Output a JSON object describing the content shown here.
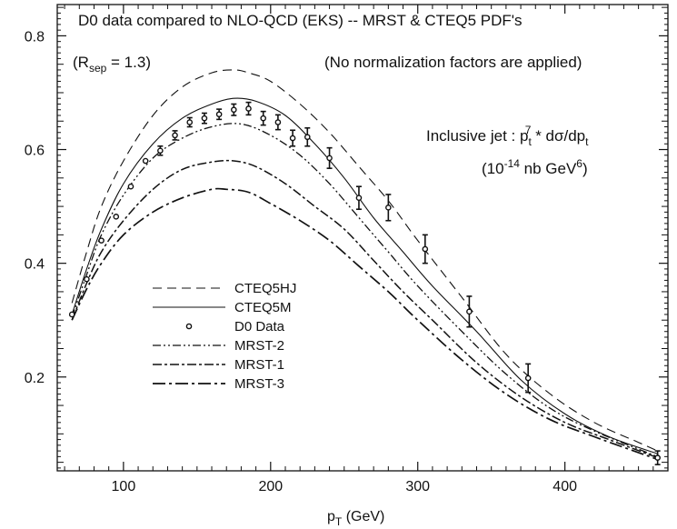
{
  "chart_data": {
    "type": "line",
    "title": "D0 data compared to NLO-QCD (EKS) -- MRST & CTEQ5 PDF's",
    "annotations": {
      "rsep_prefix": "(R",
      "rsep_sub": "sep",
      "rsep_suffix": " = 1.3)",
      "normalization": "(No normalization factors are applied)",
      "quantity_prefix": "Inclusive jet : p",
      "quantity_sub": "t",
      "quantity_sup": "7",
      "quantity_suffix": " * dσ/dp",
      "quantity_sub2": "t",
      "units_prefix": "(10",
      "units_exp": "-14",
      "units_mid": " nb GeV",
      "units_exp2": "6",
      "units_suffix": ")"
    },
    "xlabel_main": "p",
    "xlabel_sub": "T",
    "xlabel_unit": "  (GeV)",
    "ylabel": "",
    "xlim": [
      55,
      470
    ],
    "ylim": [
      0.035,
      0.855
    ],
    "x_ticks": [
      100,
      200,
      300,
      400
    ],
    "y_ticks": [
      0.2,
      0.4,
      0.6,
      0.8
    ],
    "x_tick_labels": [
      "100",
      "200",
      "300",
      "400"
    ],
    "y_tick_labels": [
      "0.2",
      "0.4",
      "0.6",
      "0.8"
    ],
    "legend_position": "lower-left",
    "series": [
      {
        "name": "CTEQ5HJ",
        "style": "dashed",
        "x": [
          65,
          75,
          85,
          100,
          120,
          140,
          160,
          175,
          185,
          200,
          220,
          240,
          260,
          280,
          300,
          330,
          360,
          390,
          420,
          450,
          463
        ],
        "y": [
          0.33,
          0.42,
          0.5,
          0.58,
          0.66,
          0.71,
          0.735,
          0.74,
          0.735,
          0.72,
          0.68,
          0.63,
          0.57,
          0.51,
          0.44,
          0.34,
          0.24,
          0.17,
          0.12,
          0.085,
          0.07
        ]
      },
      {
        "name": "CTEQ5M",
        "style": "solid",
        "x": [
          65,
          75,
          85,
          100,
          120,
          140,
          160,
          175,
          190,
          210,
          230,
          250,
          270,
          290,
          310,
          340,
          370,
          400,
          430,
          463
        ],
        "y": [
          0.31,
          0.39,
          0.46,
          0.54,
          0.61,
          0.655,
          0.68,
          0.69,
          0.685,
          0.66,
          0.61,
          0.55,
          0.48,
          0.42,
          0.36,
          0.28,
          0.195,
          0.135,
          0.095,
          0.065
        ]
      },
      {
        "name": "MRST-2",
        "style": "dashdotdot",
        "x": [
          65,
          75,
          85,
          100,
          120,
          140,
          160,
          180,
          200,
          220,
          240,
          260,
          280,
          300,
          330,
          360,
          390,
          420,
          463
        ],
        "y": [
          0.305,
          0.38,
          0.45,
          0.52,
          0.585,
          0.62,
          0.64,
          0.645,
          0.625,
          0.59,
          0.54,
          0.48,
          0.42,
          0.36,
          0.28,
          0.205,
          0.145,
          0.105,
          0.06
        ]
      },
      {
        "name": "MRST-1",
        "style": "dashdot",
        "x": [
          65,
          75,
          85,
          100,
          120,
          140,
          160,
          175,
          190,
          210,
          230,
          250,
          270,
          290,
          310,
          340,
          370,
          400,
          430,
          463
        ],
        "y": [
          0.3,
          0.365,
          0.42,
          0.475,
          0.53,
          0.565,
          0.578,
          0.58,
          0.57,
          0.54,
          0.5,
          0.46,
          0.405,
          0.35,
          0.3,
          0.225,
          0.165,
          0.12,
          0.09,
          0.058
        ]
      },
      {
        "name": "MRST-3",
        "style": "longdashdot",
        "x": [
          65,
          75,
          85,
          100,
          120,
          140,
          160,
          170,
          185,
          200,
          220,
          240,
          260,
          280,
          300,
          330,
          360,
          390,
          420,
          463
        ],
        "y": [
          0.3,
          0.355,
          0.4,
          0.45,
          0.49,
          0.515,
          0.53,
          0.53,
          0.525,
          0.505,
          0.475,
          0.44,
          0.395,
          0.35,
          0.3,
          0.23,
          0.17,
          0.125,
          0.095,
          0.055
        ]
      }
    ],
    "data_points": {
      "name": "D0 Data",
      "x": [
        65,
        75,
        85,
        95,
        105,
        115,
        125,
        135,
        145,
        155,
        165,
        175,
        185,
        195,
        205,
        215,
        225,
        240,
        260,
        280,
        305,
        335,
        375,
        463
      ],
      "y": [
        0.31,
        0.372,
        0.44,
        0.482,
        0.535,
        0.58,
        0.598,
        0.625,
        0.648,
        0.655,
        0.662,
        0.67,
        0.672,
        0.655,
        0.648,
        0.62,
        0.622,
        0.585,
        0.515,
        0.498,
        0.425,
        0.315,
        0.198,
        0.058
      ],
      "err": [
        0.004,
        0.005,
        0.006,
        0.006,
        0.007,
        0.007,
        0.008,
        0.008,
        0.008,
        0.009,
        0.009,
        0.01,
        0.011,
        0.012,
        0.013,
        0.014,
        0.016,
        0.018,
        0.02,
        0.023,
        0.025,
        0.027,
        0.025,
        0.012
      ]
    },
    "legend_order": [
      "CTEQ5HJ",
      "CTEQ5M",
      "D0 Data",
      "MRST-2",
      "MRST-1",
      "MRST-3"
    ]
  }
}
